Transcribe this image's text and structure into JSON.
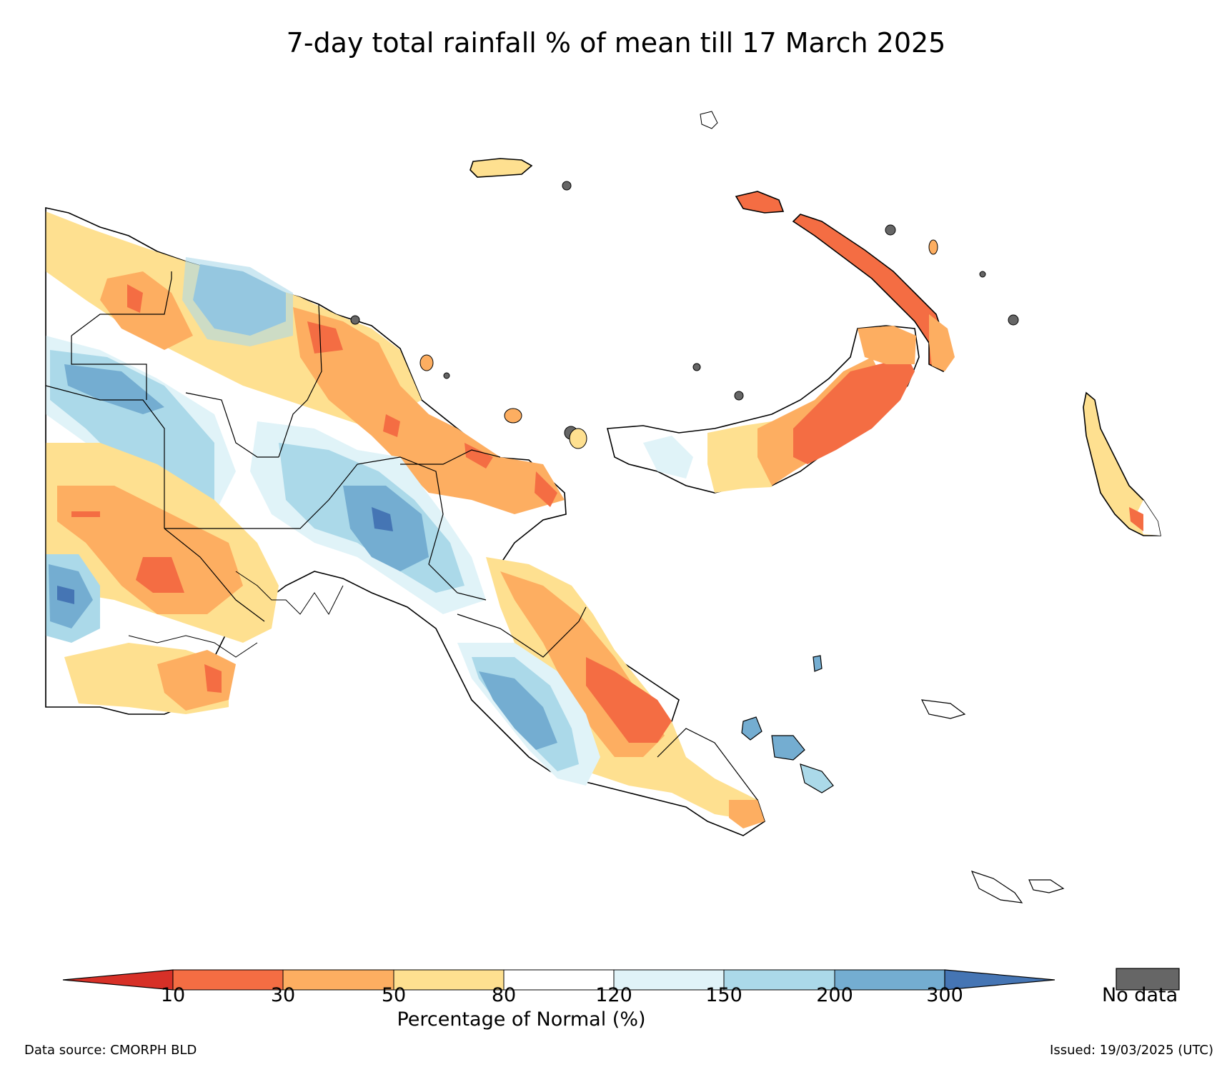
{
  "title": "7-day total rainfall % of mean till 17 March 2025",
  "colorbar": {
    "label": "Percentage of Normal (%)",
    "ticks": [
      "10",
      "30",
      "50",
      "80",
      "120",
      "150",
      "200",
      "300"
    ],
    "colors": [
      "#d73027",
      "#f46d43",
      "#fdae61",
      "#fee090",
      "#ffffff",
      "#e0f3f8",
      "#abd9e9",
      "#74add1",
      "#4575b4"
    ],
    "no_data_label": "No data",
    "no_data_color": "#666666"
  },
  "footer": {
    "data_source": "Data source: CMORPH BLD",
    "issued": "Issued: 19/03/2025 (UTC)"
  }
}
